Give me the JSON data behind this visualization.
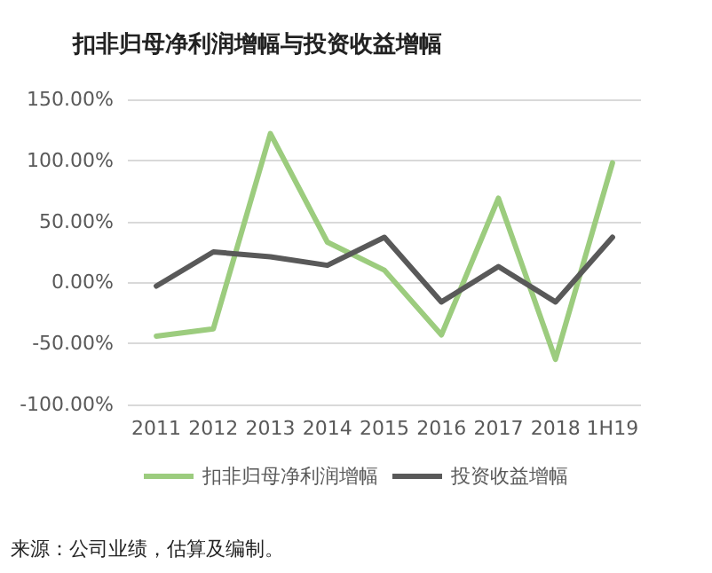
{
  "chart_data": {
    "type": "line",
    "title": "扣非归母净利润增幅与投资收益增幅",
    "annotations": [
      "来源：公司业绩，估算及编制。"
    ],
    "categories": [
      "2011",
      "2012",
      "2013",
      "2014",
      "2015",
      "2016",
      "2017",
      "2018",
      "1H19"
    ],
    "series": [
      {
        "name": "扣非归母净利润增幅",
        "color": "#9ccc7e",
        "values": [
          -44,
          -38,
          122,
          33,
          10,
          -43,
          69,
          -63,
          98
        ]
      },
      {
        "name": "投资收益增幅",
        "color": "#595959",
        "values": [
          -3,
          25,
          21,
          14,
          37,
          -16,
          13,
          -16,
          37
        ]
      }
    ],
    "ylim": [
      -100,
      150
    ],
    "yticks": [
      {
        "value": -100,
        "label": "-100.00%"
      },
      {
        "value": -50,
        "label": "-50.00%"
      },
      {
        "value": 0,
        "label": "0.00%"
      },
      {
        "value": 50,
        "label": "50.00%"
      },
      {
        "value": 100,
        "label": "100.00%"
      },
      {
        "value": 150,
        "label": "150.00%"
      }
    ],
    "grid": "y",
    "legend": "bottom",
    "marker": "none",
    "line_style": "solid"
  }
}
